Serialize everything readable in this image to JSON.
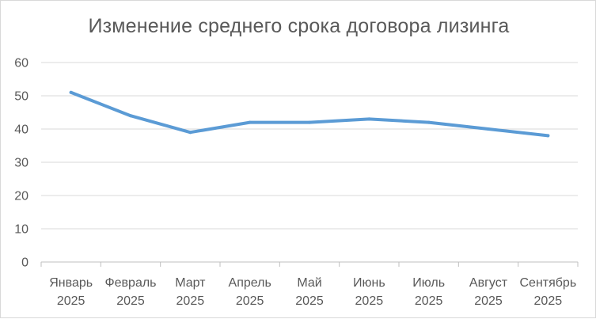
{
  "chart_data": {
    "type": "line",
    "title": "Изменение среднего срока договора лизинга",
    "xlabel": "",
    "ylabel": "",
    "categories": [
      [
        "Январь",
        "2025"
      ],
      [
        "Февраль",
        "2025"
      ],
      [
        "Март",
        "2025"
      ],
      [
        "Апрель",
        "2025"
      ],
      [
        "Май",
        "2025"
      ],
      [
        "Июнь",
        "2025"
      ],
      [
        "Июль",
        "2025"
      ],
      [
        "Август",
        "2025"
      ],
      [
        "Сентябрь",
        "2025"
      ]
    ],
    "series": [
      {
        "values": [
          51,
          44,
          39,
          42,
          42,
          43,
          42,
          40,
          38
        ],
        "color": "#5b9bd5"
      }
    ],
    "ylim": [
      0,
      60
    ],
    "yticks": [
      0,
      10,
      20,
      30,
      40,
      50,
      60
    ],
    "grid": true,
    "legend": "none",
    "colors": {
      "grid": "#d9d9d9",
      "text": "#595959",
      "axis": "#bfbfbf"
    }
  }
}
